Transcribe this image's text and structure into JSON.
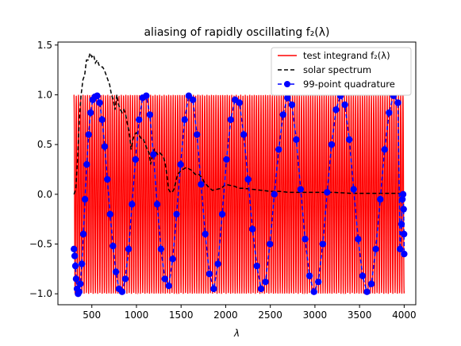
{
  "chart_data": {
    "type": "line",
    "title": "aliasing of rapidly oscillating f₂(λ)",
    "xlabel": "λ",
    "ylabel": "",
    "xlim": [
      120,
      4130
    ],
    "ylim": [
      -1.11,
      1.53
    ],
    "xticks": [
      500,
      1000,
      1500,
      2000,
      2500,
      3000,
      3500,
      4000
    ],
    "yticks": [
      -1.0,
      -0.5,
      0.0,
      0.5,
      1.0,
      1.5
    ],
    "xtick_labels": [
      "500",
      "1000",
      "1500",
      "2000",
      "2500",
      "3000",
      "3500",
      "4000"
    ],
    "ytick_labels": [
      "−1.0",
      "−0.5",
      "0.0",
      "0.5",
      "1.0",
      "1.5"
    ],
    "legend_position": "top-right",
    "grid": false,
    "series": [
      {
        "name": "test integrand f₂(λ)",
        "style": "solid",
        "color": "#ff0000",
        "x_range": [
          300,
          4000
        ],
        "oscillation_period": 25.25,
        "amplitude": 1.0,
        "note_values": "cos oscillation between -1 and 1"
      },
      {
        "name": "solar spectrum",
        "style": "dashed",
        "color": "#000000",
        "x": [
          300,
          320,
          340,
          360,
          380,
          400,
          420,
          440,
          460,
          480,
          500,
          520,
          540,
          560,
          580,
          600,
          620,
          640,
          660,
          680,
          700,
          720,
          740,
          760,
          780,
          800,
          820,
          840,
          860,
          880,
          900,
          920,
          940,
          960,
          980,
          1000,
          1020,
          1040,
          1060,
          1080,
          1100,
          1120,
          1140,
          1160,
          1180,
          1200,
          1220,
          1240,
          1260,
          1280,
          1300,
          1320,
          1340,
          1360,
          1380,
          1400,
          1420,
          1440,
          1460,
          1480,
          1500,
          1520,
          1540,
          1560,
          1580,
          1600,
          1620,
          1640,
          1660,
          1680,
          1700,
          1720,
          1740,
          1760,
          1780,
          1800,
          1850,
          1900,
          1950,
          2000,
          2050,
          2100,
          2150,
          2200,
          2300,
          2400,
          2500,
          2600,
          2700,
          2800,
          2900,
          3000,
          3200,
          3400,
          3600,
          3800,
          4000
        ],
        "values": [
          0.0,
          0.05,
          0.35,
          0.75,
          1.0,
          1.15,
          1.2,
          1.35,
          1.35,
          1.42,
          1.38,
          1.4,
          1.32,
          1.35,
          1.3,
          1.28,
          1.28,
          1.25,
          1.2,
          1.15,
          1.1,
          1.0,
          0.95,
          0.85,
          1.0,
          0.9,
          0.85,
          0.82,
          0.85,
          0.8,
          0.7,
          0.62,
          0.45,
          0.55,
          0.6,
          0.62,
          0.6,
          0.58,
          0.55,
          0.55,
          0.5,
          0.45,
          0.42,
          0.3,
          0.4,
          0.45,
          0.42,
          0.4,
          0.42,
          0.4,
          0.38,
          0.32,
          0.2,
          0.05,
          0.02,
          0.02,
          0.05,
          0.12,
          0.2,
          0.22,
          0.24,
          0.25,
          0.26,
          0.27,
          0.26,
          0.25,
          0.24,
          0.22,
          0.2,
          0.2,
          0.2,
          0.18,
          0.16,
          0.12,
          0.1,
          0.08,
          0.04,
          0.05,
          0.06,
          0.1,
          0.09,
          0.08,
          0.06,
          0.06,
          0.05,
          0.04,
          0.03,
          0.03,
          0.02,
          0.02,
          0.02,
          0.02,
          0.02,
          0.01,
          0.01,
          0.01,
          0.01
        ]
      },
      {
        "name": "99-point quadrature",
        "style": "dashed",
        "marker": "circle",
        "color": "#0000ff",
        "x": [
          300,
          308,
          316,
          324,
          334,
          346,
          358,
          372,
          388,
          405,
          423,
          443,
          464,
          486,
          510,
          535,
          560,
          587,
          615,
          644,
          674,
          705,
          737,
          770,
          804,
          839,
          875,
          912,
          950,
          989,
          1029,
          1070,
          1110,
          1150,
          1190,
          1232,
          1275,
          1318,
          1362,
          1406,
          1450,
          1495,
          1540,
          1586,
          1632,
          1678,
          1724,
          1771,
          1818,
          1866,
          1913,
          1961,
          2009,
          2057,
          2105,
          2154,
          2202,
          2251,
          2300,
          2349,
          2397,
          2446,
          2496,
          2545,
          2594,
          2643,
          2692,
          2742,
          2791,
          2840,
          2890,
          2939,
          2989,
          3038,
          3088,
          3137,
          3187,
          3236,
          3286,
          3335,
          3385,
          3434,
          3484,
          3534,
          3583,
          3633,
          3682,
          3732,
          3781,
          3831,
          3880,
          3930,
          3954,
          3970,
          3980,
          3988,
          3994,
          3998,
          4000
        ],
        "values": [
          -0.55,
          -0.62,
          -0.72,
          -0.85,
          -0.95,
          -1.0,
          -0.98,
          -0.9,
          -0.7,
          -0.4,
          -0.05,
          0.3,
          0.6,
          0.82,
          0.95,
          0.98,
          0.99,
          0.92,
          0.75,
          0.48,
          0.15,
          -0.2,
          -0.52,
          -0.78,
          -0.95,
          -0.98,
          -0.85,
          -0.55,
          -0.1,
          0.35,
          0.75,
          0.97,
          0.99,
          0.8,
          0.4,
          -0.1,
          -0.55,
          -0.85,
          -0.92,
          -0.65,
          -0.2,
          0.3,
          0.75,
          0.99,
          0.95,
          0.6,
          0.1,
          -0.4,
          -0.8,
          -0.95,
          -0.7,
          -0.2,
          0.35,
          0.75,
          0.95,
          0.92,
          0.6,
          0.15,
          -0.35,
          -0.72,
          -0.95,
          -0.88,
          -0.5,
          0.0,
          0.45,
          0.8,
          0.97,
          0.9,
          0.55,
          0.05,
          -0.45,
          -0.82,
          -0.98,
          -0.88,
          -0.5,
          0.02,
          0.5,
          0.85,
          0.99,
          0.9,
          0.55,
          0.05,
          -0.45,
          -0.82,
          -0.98,
          -0.9,
          -0.55,
          -0.05,
          0.45,
          0.82,
          0.99,
          0.92,
          -0.55,
          -0.3,
          -0.05,
          0.0,
          -0.15,
          -0.4,
          -0.6
        ]
      }
    ]
  }
}
